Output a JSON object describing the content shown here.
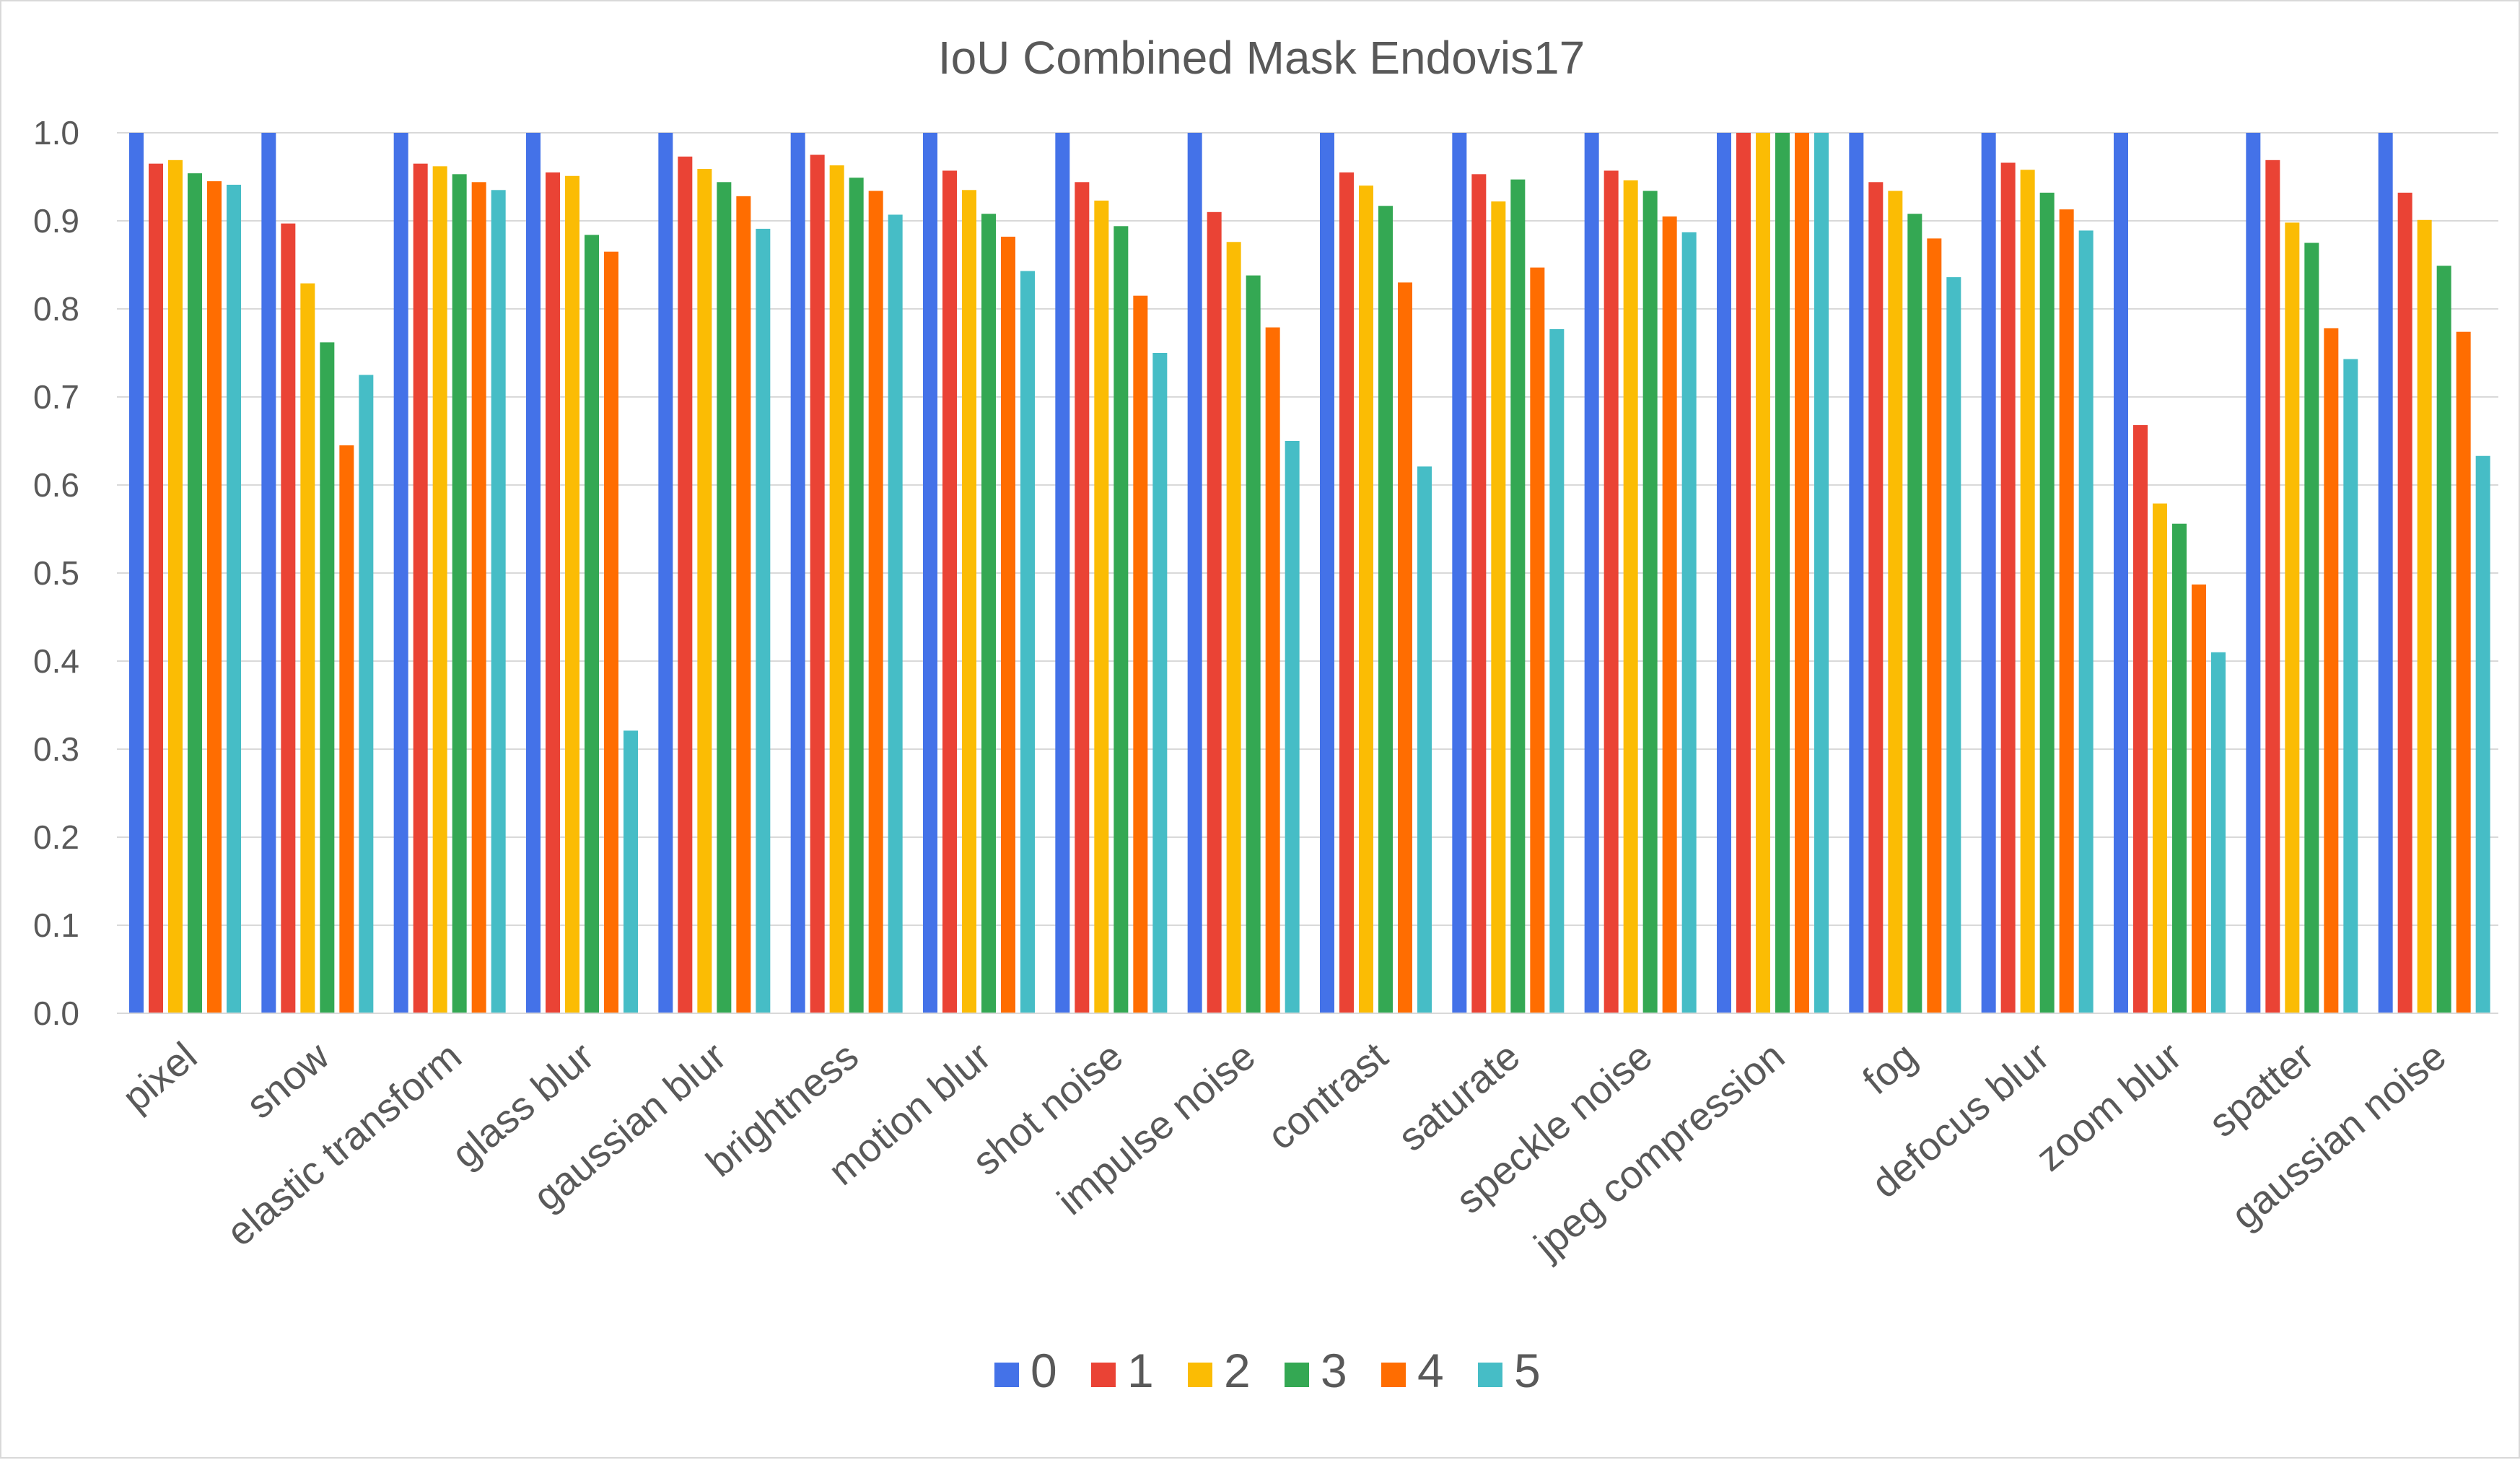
{
  "chart_data": {
    "type": "bar",
    "title": "IoU  Combined Mask Endovis17",
    "xlabel": "",
    "ylabel": "",
    "ylim": [
      0,
      1.0
    ],
    "yticks": [
      "0.0",
      "0.1",
      "0.2",
      "0.3",
      "0.4",
      "0.5",
      "0.6",
      "0.7",
      "0.8",
      "0.9",
      "1.0"
    ],
    "grid": true,
    "legend_position": "bottom",
    "categories": [
      "pixel",
      "snow",
      "elastic  transform",
      "glass  blur",
      "gaussian blur",
      "brightness",
      "motion blur",
      "shot noise",
      "impulse noise",
      "contrast",
      "saturate",
      "speckle noise",
      "jpeg compression",
      "fog",
      "defocus blur",
      "zoom blur",
      "spatter",
      "gaussian noise"
    ],
    "series": [
      {
        "name": "0",
        "color": "#4472e8",
        "values": [
          1.0,
          1.0,
          1.0,
          1.0,
          1.0,
          1.0,
          1.0,
          1.0,
          1.0,
          1.0,
          1.0,
          1.0,
          1.0,
          1.0,
          1.0,
          1.0,
          1.0,
          1.0
        ]
      },
      {
        "name": "1",
        "color": "#ea4335",
        "values": [
          0.965,
          0.897,
          0.965,
          0.955,
          0.973,
          0.975,
          0.957,
          0.944,
          0.91,
          0.955,
          0.953,
          0.957,
          1.0,
          0.944,
          0.966,
          0.668,
          0.969,
          0.932
        ]
      },
      {
        "name": "2",
        "color": "#fbbc04",
        "values": [
          0.969,
          0.829,
          0.962,
          0.951,
          0.959,
          0.963,
          0.935,
          0.923,
          0.876,
          0.94,
          0.922,
          0.946,
          1.0,
          0.934,
          0.958,
          0.579,
          0.898,
          0.901
        ]
      },
      {
        "name": "3",
        "color": "#34a853",
        "values": [
          0.954,
          0.762,
          0.953,
          0.884,
          0.944,
          0.949,
          0.908,
          0.894,
          0.838,
          0.917,
          0.947,
          0.934,
          1.0,
          0.908,
          0.932,
          0.556,
          0.875,
          0.849
        ]
      },
      {
        "name": "4",
        "color": "#ff6d01",
        "values": [
          0.945,
          0.645,
          0.944,
          0.865,
          0.928,
          0.934,
          0.882,
          0.815,
          0.779,
          0.83,
          0.847,
          0.905,
          1.0,
          0.88,
          0.913,
          0.487,
          0.778,
          0.774
        ]
      },
      {
        "name": "5",
        "color": "#46bdc6",
        "values": [
          0.941,
          0.725,
          0.935,
          0.321,
          0.891,
          0.907,
          0.843,
          0.75,
          0.65,
          0.621,
          0.777,
          0.887,
          1.0,
          0.836,
          0.889,
          0.41,
          0.743,
          0.633
        ]
      }
    ]
  }
}
